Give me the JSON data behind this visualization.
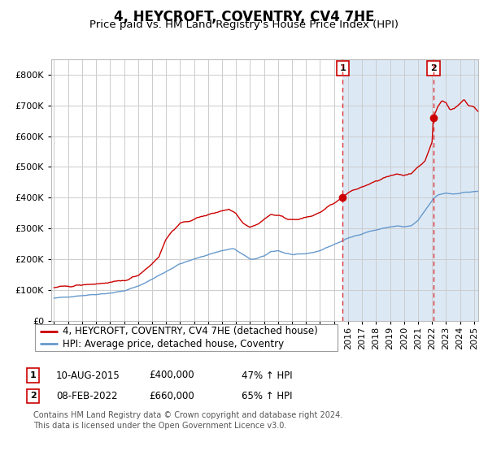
{
  "title": "4, HEYCROFT, COVENTRY, CV4 7HE",
  "subtitle": "Price paid vs. HM Land Registry's House Price Index (HPI)",
  "red_label": "4, HEYCROFT, COVENTRY, CV4 7HE (detached house)",
  "blue_label": "HPI: Average price, detached house, Coventry",
  "sale1_date": "10-AUG-2015",
  "sale1_price": 400000,
  "sale1_pct": "47% ↑ HPI",
  "sale2_date": "08-FEB-2022",
  "sale2_price": 660000,
  "sale2_pct": "65% ↑ HPI",
  "sale1_year": 2015.62,
  "sale2_year": 2022.1,
  "ylim_max": 850000,
  "xlim_min": 1994.8,
  "xlim_max": 2025.3,
  "footnote1": "Contains HM Land Registry data © Crown copyright and database right 2024.",
  "footnote2": "This data is licensed under the Open Government Licence v3.0.",
  "bg_color": "#dce9f5",
  "bg_before_color": "#ffffff",
  "grid_color": "#cccccc",
  "red_line_color": "#cc0000",
  "blue_line_color": "#6699cc",
  "dashed_color": "#dd3333",
  "box_color": "#cc0000",
  "title_fontsize": 12,
  "subtitle_fontsize": 9.5,
  "tick_fontsize": 8,
  "legend_fontsize": 8.5,
  "annot_fontsize": 8.5,
  "footnote_fontsize": 7
}
